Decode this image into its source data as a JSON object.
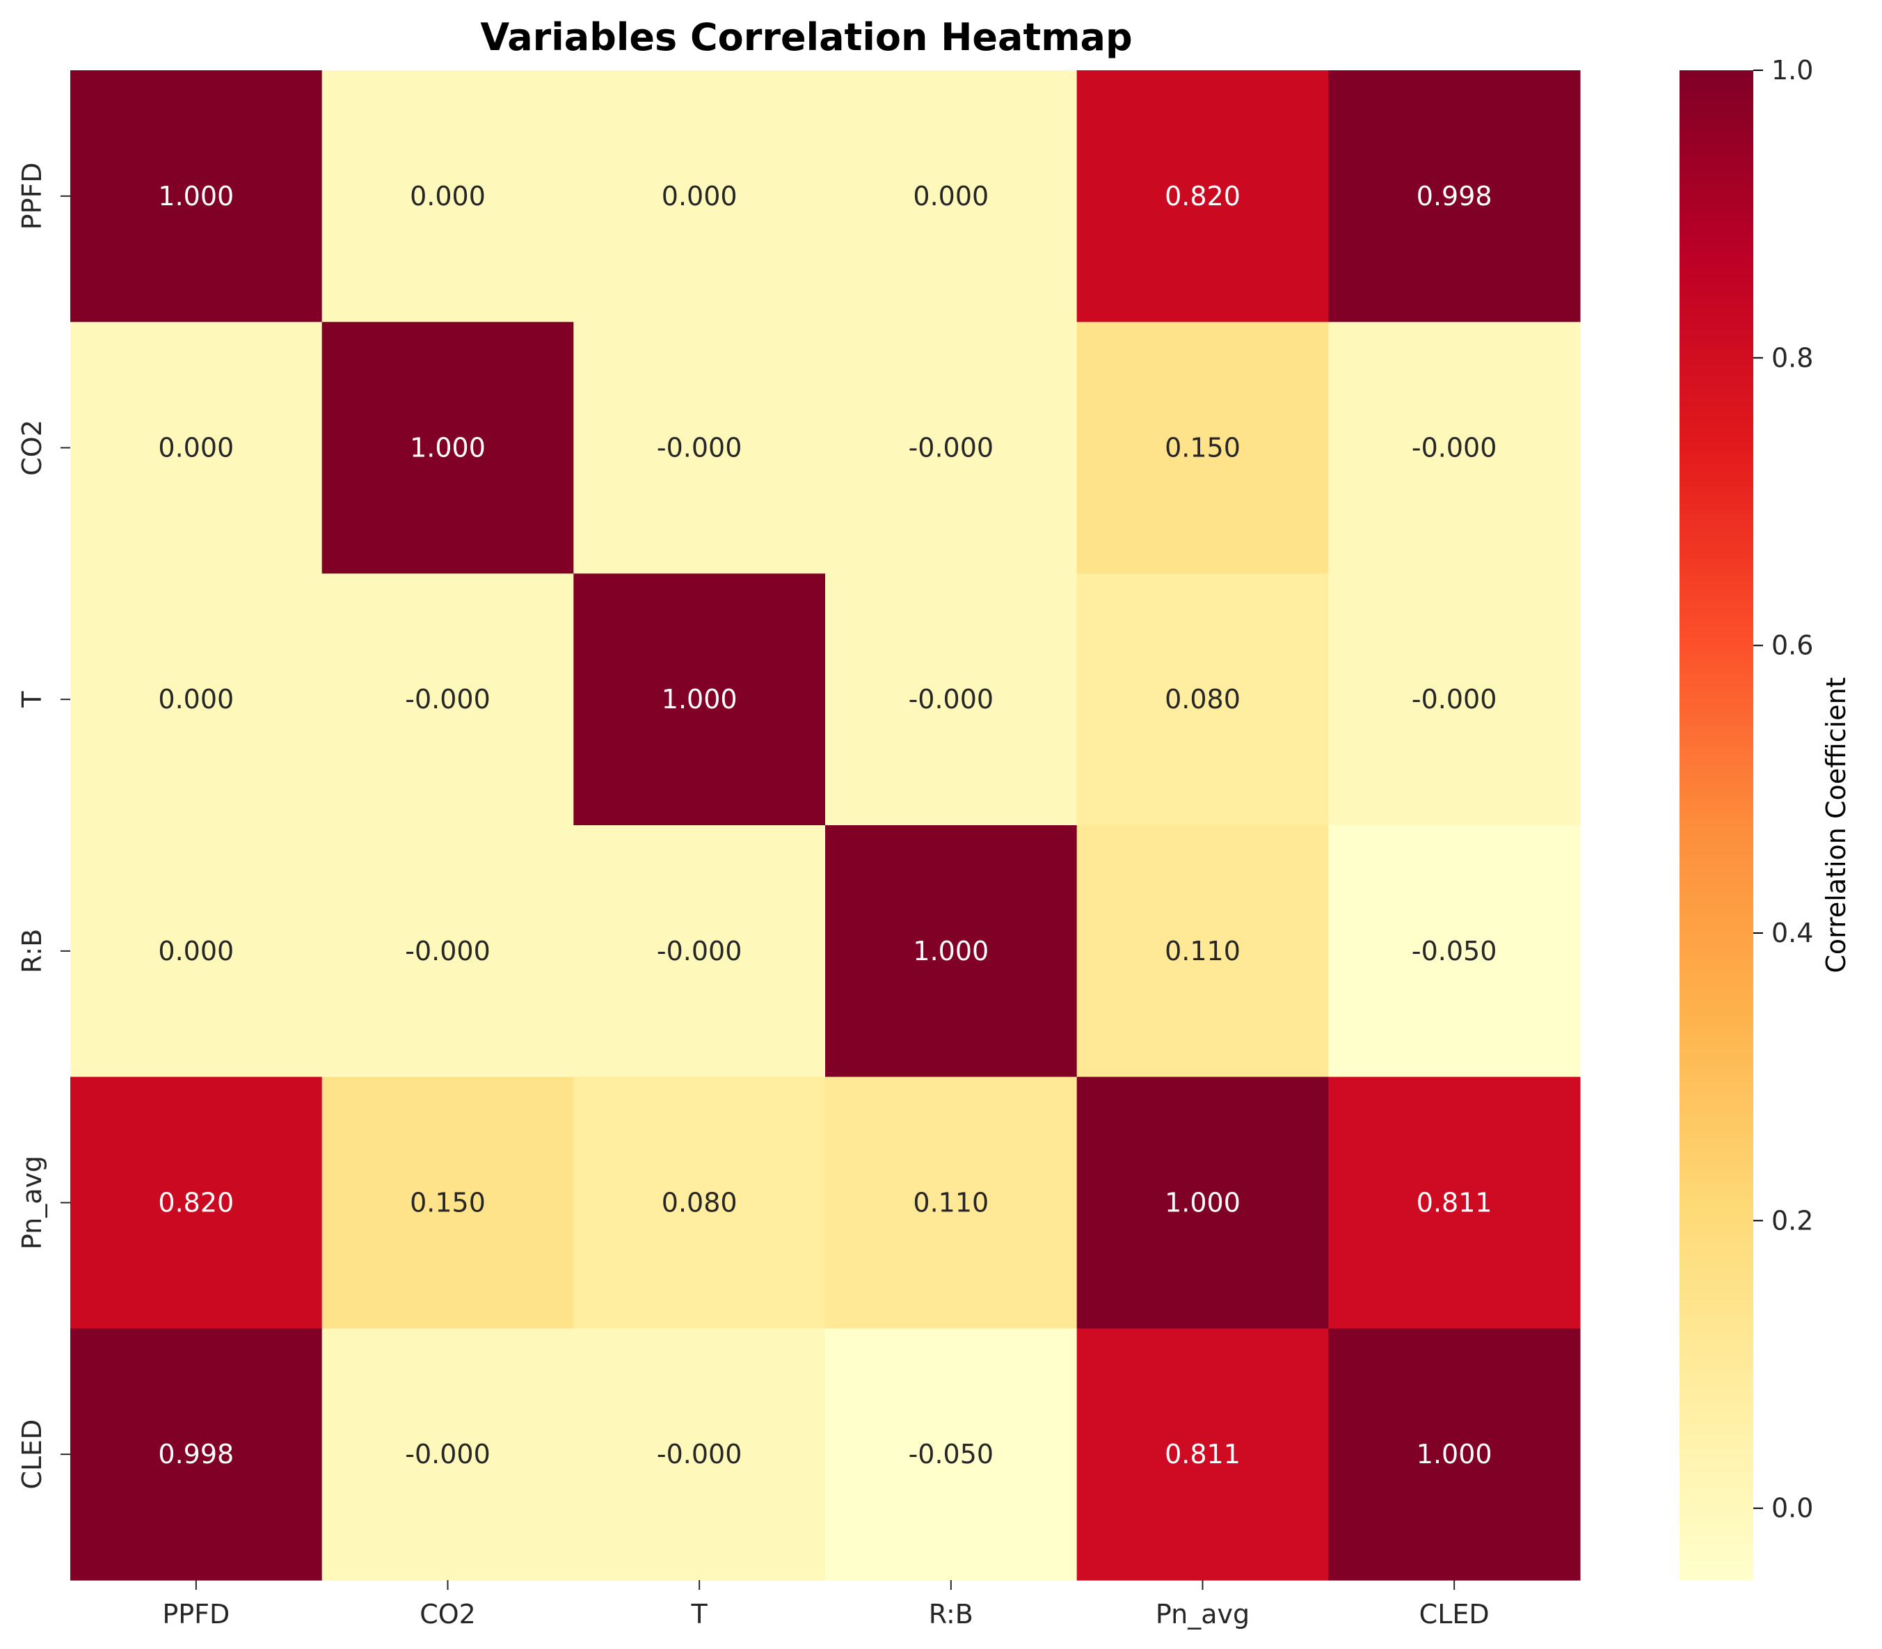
{
  "chart_data": {
    "type": "heatmap",
    "title": "Variables Correlation Heatmap",
    "x_categories": [
      "PPFD",
      "CO2",
      "T",
      "R:B",
      "Pn_avg",
      "CLED"
    ],
    "y_categories": [
      "PPFD",
      "CO2",
      "T",
      "R:B",
      "Pn_avg",
      "CLED"
    ],
    "values": [
      [
        1.0,
        0.0,
        0.0,
        0.0,
        0.82,
        0.998
      ],
      [
        0.0,
        1.0,
        -0.0,
        -0.0,
        0.15,
        -0.0
      ],
      [
        0.0,
        -0.0,
        1.0,
        -0.0,
        0.08,
        -0.0
      ],
      [
        0.0,
        -0.0,
        -0.0,
        1.0,
        0.11,
        -0.05
      ],
      [
        0.82,
        0.15,
        0.08,
        0.11,
        1.0,
        0.811
      ],
      [
        0.998,
        -0.0,
        -0.0,
        -0.05,
        0.811,
        1.0
      ]
    ],
    "labels": [
      [
        "1.000",
        "0.000",
        "0.000",
        "0.000",
        "0.820",
        "0.998"
      ],
      [
        "0.000",
        "1.000",
        "-0.000",
        "-0.000",
        "0.150",
        "-0.000"
      ],
      [
        "0.000",
        "-0.000",
        "1.000",
        "-0.000",
        "0.080",
        "-0.000"
      ],
      [
        "0.000",
        "-0.000",
        "-0.000",
        "1.000",
        "0.110",
        "-0.050"
      ],
      [
        "0.820",
        "0.150",
        "0.080",
        "0.110",
        "1.000",
        "0.811"
      ],
      [
        "0.998",
        "-0.000",
        "-0.000",
        "-0.050",
        "0.811",
        "1.000"
      ]
    ],
    "colorbar": {
      "label": "Correlation Coefficient",
      "range": [
        -0.05,
        1.0
      ],
      "ticks": [
        0.0,
        0.2,
        0.4,
        0.6,
        0.8,
        1.0
      ],
      "tick_labels": [
        "0.0",
        "0.2",
        "0.4",
        "0.6",
        "0.8",
        "1.0"
      ],
      "colormap": "YlOrRd"
    },
    "colors": {
      "stops": [
        "#ffffcc",
        "#ffeda0",
        "#fed976",
        "#feb24c",
        "#fd8d3c",
        "#fc4e2a",
        "#e31a1c",
        "#bd0026",
        "#800026"
      ],
      "light_text": "#ffffff",
      "dark_text": "#262626"
    }
  }
}
